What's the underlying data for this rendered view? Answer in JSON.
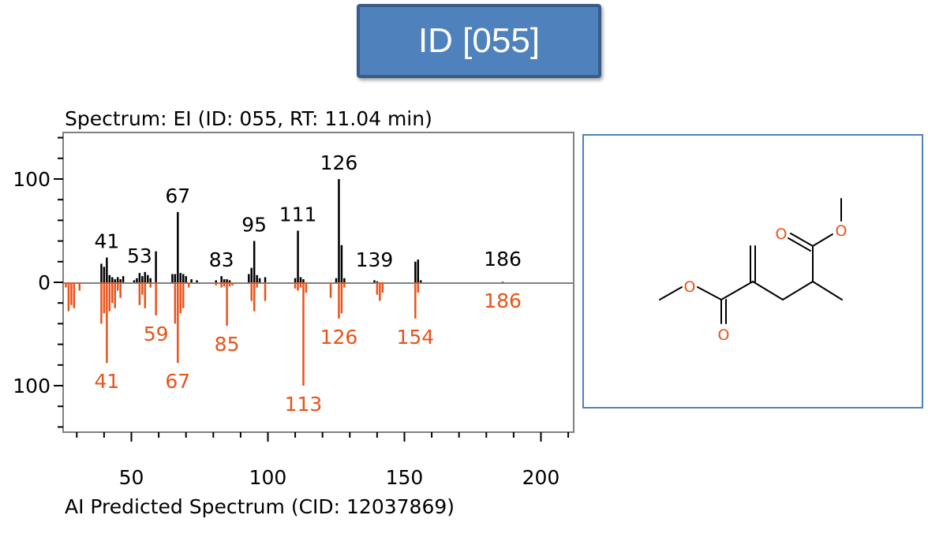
{
  "id_badge": "ID [055]",
  "spectrum_top_label": "Spectrum: EI (ID: 055, RT: 11.04 min)",
  "spectrum_bottom_label": "AI Predicted Spectrum (CID: 12037869)",
  "colors": {
    "measured": "#000000",
    "predicted": "#e8531a",
    "frame": "#808080",
    "badge": "#4f81bd",
    "atom_O": "#e8531a"
  },
  "structure": {
    "atoms": [
      "O",
      "O",
      "O",
      "O"
    ]
  },
  "chart_data": {
    "type": "bar",
    "xlim": [
      25,
      212
    ],
    "ylim": [
      -145,
      145
    ],
    "xticks": [
      50,
      100,
      150,
      200
    ],
    "yticks": [
      {
        "value": 100,
        "label": "100"
      },
      {
        "value": 0,
        "label": "0"
      },
      {
        "value": -100,
        "label": "100"
      }
    ],
    "series": [
      {
        "role": "measured",
        "peaks": [
          [
            39,
            18
          ],
          [
            40,
            15
          ],
          [
            41,
            24
          ],
          [
            42,
            7
          ],
          [
            43,
            5
          ],
          [
            44,
            3
          ],
          [
            45,
            5
          ],
          [
            46,
            3
          ],
          [
            47,
            6
          ],
          [
            51,
            2
          ],
          [
            52,
            4
          ],
          [
            53,
            9
          ],
          [
            54,
            6
          ],
          [
            55,
            10
          ],
          [
            56,
            7
          ],
          [
            57,
            4
          ],
          [
            59,
            30
          ],
          [
            65,
            8
          ],
          [
            66,
            8
          ],
          [
            67,
            68
          ],
          [
            68,
            9
          ],
          [
            69,
            8
          ],
          [
            70,
            6
          ],
          [
            72,
            3
          ],
          [
            74,
            2
          ],
          [
            81,
            2
          ],
          [
            83,
            6
          ],
          [
            84,
            3
          ],
          [
            85,
            3
          ],
          [
            86,
            2
          ],
          [
            93,
            8
          ],
          [
            94,
            14
          ],
          [
            95,
            40
          ],
          [
            96,
            7
          ],
          [
            97,
            4
          ],
          [
            99,
            5
          ],
          [
            110,
            4
          ],
          [
            111,
            50
          ],
          [
            112,
            5
          ],
          [
            113,
            3
          ],
          [
            125,
            4
          ],
          [
            126,
            100
          ],
          [
            127,
            36
          ],
          [
            128,
            4
          ],
          [
            139,
            2
          ],
          [
            140,
            1
          ],
          [
            154,
            20
          ],
          [
            155,
            22
          ],
          [
            156,
            2
          ],
          [
            186,
            0.5
          ]
        ],
        "labels": [
          {
            "x": 41,
            "value": "41"
          },
          {
            "x": 53,
            "value": "53"
          },
          {
            "x": 67,
            "value": "67"
          },
          {
            "x": 83,
            "value": "83"
          },
          {
            "x": 95,
            "value": "95"
          },
          {
            "x": 111,
            "value": "111"
          },
          {
            "x": 126,
            "value": "126"
          },
          {
            "x": 139,
            "value": "139"
          },
          {
            "x": 186,
            "value": "186"
          }
        ]
      },
      {
        "role": "predicted",
        "peaks": [
          [
            26,
            5
          ],
          [
            27,
            28
          ],
          [
            28,
            22
          ],
          [
            29,
            25
          ],
          [
            31,
            8
          ],
          [
            39,
            40
          ],
          [
            40,
            30
          ],
          [
            41,
            78
          ],
          [
            42,
            28
          ],
          [
            43,
            20
          ],
          [
            44,
            25
          ],
          [
            45,
            8
          ],
          [
            46,
            15
          ],
          [
            53,
            22
          ],
          [
            54,
            12
          ],
          [
            55,
            25
          ],
          [
            57,
            5
          ],
          [
            59,
            32
          ],
          [
            66,
            40
          ],
          [
            67,
            78
          ],
          [
            68,
            30
          ],
          [
            69,
            25
          ],
          [
            71,
            5
          ],
          [
            81,
            3
          ],
          [
            83,
            5
          ],
          [
            84,
            4
          ],
          [
            85,
            42
          ],
          [
            86,
            4
          ],
          [
            87,
            3
          ],
          [
            94,
            18
          ],
          [
            95,
            28
          ],
          [
            96,
            5
          ],
          [
            99,
            18
          ],
          [
            110,
            6
          ],
          [
            111,
            8
          ],
          [
            112,
            5
          ],
          [
            113,
            100
          ],
          [
            114,
            10
          ],
          [
            123,
            15
          ],
          [
            126,
            35
          ],
          [
            127,
            30
          ],
          [
            128,
            5
          ],
          [
            140,
            12
          ],
          [
            141,
            18
          ],
          [
            142,
            10
          ],
          [
            154,
            35
          ],
          [
            155,
            10
          ]
        ],
        "labels": [
          {
            "x": 41,
            "value": "41"
          },
          {
            "x": 59,
            "value": "59"
          },
          {
            "x": 67,
            "value": "67"
          },
          {
            "x": 85,
            "value": "85"
          },
          {
            "x": 113,
            "value": "113"
          },
          {
            "x": 126,
            "value": "126"
          },
          {
            "x": 154,
            "value": "154"
          },
          {
            "x": 186,
            "value": "186"
          }
        ]
      }
    ]
  }
}
